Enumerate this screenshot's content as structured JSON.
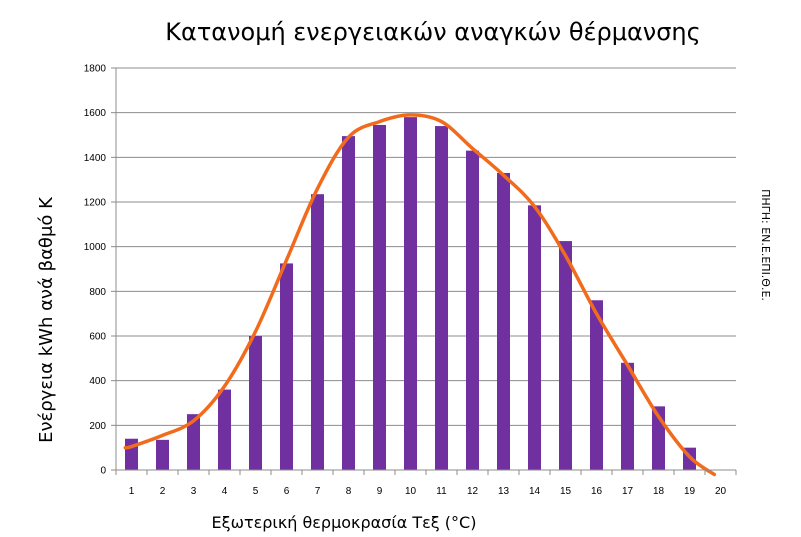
{
  "chart_data": {
    "type": "bar",
    "title": "Κατανομή ενεργειακών αναγκών θέρμανσης",
    "xlabel": "Εξωτερική θερμοκρασία Τεξ (°C)",
    "ylabel": "Ενέργεια  kWh ανά  βαθμό Κ",
    "source_note": "ΠΗΓΗ: ΕΝ.Ε.ΕΠΙ.Θ.Ε.",
    "categories": [
      "1",
      "2",
      "3",
      "4",
      "5",
      "6",
      "7",
      "8",
      "9",
      "10",
      "11",
      "12",
      "13",
      "14",
      "15",
      "16",
      "17",
      "18",
      "19",
      "20"
    ],
    "values": [
      140,
      135,
      250,
      360,
      600,
      925,
      1235,
      1495,
      1545,
      1580,
      1540,
      1430,
      1330,
      1185,
      1025,
      760,
      480,
      285,
      100,
      null
    ],
    "ylim": [
      0,
      1800
    ],
    "yticks": [
      0,
      200,
      400,
      600,
      800,
      1000,
      1200,
      1400,
      1600,
      1800
    ],
    "grid": true,
    "bar_color": "#7030a0",
    "trend_line": {
      "color": "#f26b1d",
      "x": [
        0.8,
        1,
        2,
        3,
        4,
        5,
        6,
        7,
        8,
        9,
        10,
        11,
        12,
        13,
        14,
        15,
        16,
        17,
        18,
        19,
        19.8
      ],
      "y": [
        100,
        105,
        155,
        220,
        375,
        620,
        940,
        1260,
        1490,
        1560,
        1590,
        1560,
        1440,
        1320,
        1180,
        960,
        700,
        470,
        240,
        60,
        -20
      ]
    }
  }
}
